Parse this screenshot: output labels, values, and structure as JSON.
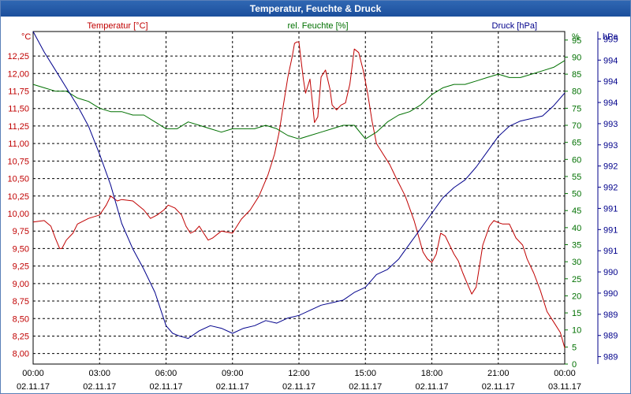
{
  "window": {
    "title": "Temperatur, Feuchte & Druck"
  },
  "colors": {
    "temperature": "#c00000",
    "humidity": "#007000",
    "pressure": "#00008b",
    "grid": "#000000",
    "titlebar": "#1f56a3"
  },
  "chart_data": {
    "type": "line",
    "title": "Temperatur, Feuchte & Druck",
    "grid": true,
    "x_tick_labels": [
      [
        "00:00",
        "02.11.17"
      ],
      [
        "03:00",
        "02.11.17"
      ],
      [
        "06:00",
        "02.11.17"
      ],
      [
        "09:00",
        "02.11.17"
      ],
      [
        "12:00",
        "02.11.17"
      ],
      [
        "15:00",
        "02.11.17"
      ],
      [
        "18:00",
        "02.11.17"
      ],
      [
        "21:00",
        "02.11.17"
      ],
      [
        "00:00",
        "03.11.17"
      ]
    ],
    "xlim_hours": [
      0,
      24
    ],
    "axes": {
      "temperature": {
        "unit": "°C",
        "ylim": [
          7.85,
          12.6
        ],
        "ticks": [
          "8,00",
          "8,25",
          "8,50",
          "8,75",
          "9,00",
          "9,25",
          "9,50",
          "9,75",
          "10,00",
          "10,25",
          "10,50",
          "10,75",
          "11,00",
          "11,25",
          "11,50",
          "11,75",
          "12,00",
          "12,25"
        ]
      },
      "humidity": {
        "unit": "%",
        "ylim": [
          0,
          97.5
        ],
        "ticks": [
          "0",
          "5",
          "10",
          "15",
          "20",
          "25",
          "30",
          "35",
          "40",
          "45",
          "50",
          "55",
          "60",
          "65",
          "70",
          "75",
          "80",
          "85",
          "90",
          "95"
        ]
      },
      "pressure": {
        "unit": "hPa",
        "ylim": [
          988.7,
          995.2
        ],
        "ticks": [
          "989",
          "989",
          "989",
          "990",
          "990",
          "991",
          "991",
          "991",
          "992",
          "992",
          "993",
          "993",
          "994",
          "994",
          "994",
          "995"
        ]
      }
    },
    "series": [
      {
        "name": "Temperatur [°C]",
        "axis": "temperature",
        "x": [
          0,
          0.5,
          0.8,
          1.0,
          1.2,
          1.3,
          1.5,
          1.8,
          2.0,
          2.5,
          3.0,
          3.3,
          3.5,
          3.8,
          4.0,
          4.5,
          5.0,
          5.3,
          5.6,
          5.9,
          6.1,
          6.4,
          6.7,
          6.9,
          7.1,
          7.3,
          7.5,
          7.7,
          7.9,
          8.1,
          8.5,
          9.0,
          9.4,
          9.8,
          10.2,
          10.6,
          10.9,
          11.1,
          11.3,
          11.5,
          11.7,
          11.8,
          11.9,
          12.0,
          12.1,
          12.2,
          12.3,
          12.5,
          12.7,
          12.85,
          13.0,
          13.2,
          13.4,
          13.5,
          13.7,
          13.9,
          14.1,
          14.3,
          14.5,
          14.7,
          14.9,
          15.1,
          15.3,
          15.5,
          15.8,
          16.1,
          16.4,
          16.8,
          17.2,
          17.6,
          17.8,
          18.0,
          18.2,
          18.4,
          18.6,
          18.8,
          19.0,
          19.2,
          19.4,
          19.6,
          19.8,
          20.0,
          20.3,
          20.6,
          20.8,
          21.0,
          21.2,
          21.5,
          21.8,
          22.1,
          22.3,
          22.6,
          22.9,
          23.2,
          23.5,
          23.8,
          24.0
        ],
        "y": [
          9.88,
          9.9,
          9.82,
          9.65,
          9.5,
          9.5,
          9.62,
          9.72,
          9.85,
          9.93,
          9.98,
          10.12,
          10.25,
          10.18,
          10.2,
          10.18,
          10.05,
          9.93,
          9.98,
          10.05,
          10.12,
          10.08,
          9.98,
          9.82,
          9.72,
          9.75,
          9.82,
          9.72,
          9.62,
          9.65,
          9.75,
          9.72,
          9.92,
          10.05,
          10.25,
          10.55,
          10.85,
          11.15,
          11.55,
          11.95,
          12.25,
          12.43,
          12.45,
          12.45,
          12.18,
          11.92,
          11.72,
          11.92,
          11.3,
          11.38,
          11.95,
          12.05,
          11.78,
          11.55,
          11.48,
          11.55,
          11.58,
          11.85,
          12.35,
          12.3,
          12.05,
          11.72,
          11.32,
          11.0,
          10.85,
          10.7,
          10.5,
          10.25,
          9.9,
          9.45,
          9.35,
          9.3,
          9.42,
          9.72,
          9.68,
          9.55,
          9.42,
          9.32,
          9.15,
          9.0,
          8.85,
          8.95,
          9.55,
          9.82,
          9.9,
          9.87,
          9.85,
          9.85,
          9.65,
          9.55,
          9.35,
          9.15,
          8.9,
          8.6,
          8.45,
          8.3,
          8.08
        ]
      },
      {
        "name": "rel. Feuchte [%]",
        "axis": "humidity",
        "x": [
          0,
          0.5,
          1.0,
          1.5,
          2.0,
          2.5,
          3.0,
          3.5,
          4.0,
          4.5,
          5.0,
          5.5,
          6.0,
          6.5,
          7.0,
          7.5,
          8.0,
          8.5,
          9.0,
          9.5,
          10.0,
          10.5,
          11.0,
          11.5,
          12.0,
          12.5,
          13.0,
          13.5,
          14.0,
          14.5,
          15.0,
          15.5,
          16.0,
          16.5,
          17.0,
          17.5,
          18.0,
          18.5,
          19.0,
          19.5,
          20.0,
          20.5,
          21.0,
          21.5,
          22.0,
          22.5,
          23.0,
          23.5,
          24.0
        ],
        "y": [
          82,
          81,
          80,
          80,
          78,
          77,
          75,
          74,
          74,
          73,
          73,
          71,
          69,
          69,
          71,
          70,
          69,
          68,
          69,
          69,
          69,
          70,
          69,
          67,
          66,
          67,
          68,
          69,
          70,
          70,
          66,
          68,
          71,
          73,
          74,
          76,
          79,
          81,
          82,
          82,
          83,
          84,
          85,
          84,
          84,
          85,
          86,
          87,
          89
        ]
      },
      {
        "name": "Druck [hPa]",
        "axis": "pressure",
        "x": [
          0,
          0.5,
          1.0,
          1.5,
          2.0,
          2.5,
          3.0,
          3.5,
          4.0,
          4.5,
          5.0,
          5.5,
          6.0,
          6.3,
          6.6,
          7.0,
          7.5,
          8.0,
          8.5,
          9.0,
          9.5,
          10.0,
          10.5,
          11.0,
          11.5,
          12.0,
          12.5,
          13.0,
          13.5,
          14.0,
          14.5,
          15.0,
          15.5,
          16.0,
          16.5,
          17.0,
          17.5,
          18.0,
          18.5,
          19.0,
          19.5,
          20.0,
          20.5,
          21.0,
          21.5,
          22.0,
          22.5,
          23.0,
          23.5,
          24.0
        ],
        "y": [
          995.2,
          994.8,
          994.45,
          994.1,
          993.75,
          993.35,
          992.8,
          992.2,
          991.45,
          990.95,
          990.55,
          990.1,
          989.45,
          989.3,
          989.25,
          989.2,
          989.35,
          989.45,
          989.4,
          989.3,
          989.4,
          989.45,
          989.55,
          989.5,
          989.6,
          989.65,
          989.75,
          989.85,
          989.9,
          989.95,
          990.1,
          990.2,
          990.45,
          990.55,
          990.75,
          991.05,
          991.35,
          991.65,
          991.95,
          992.15,
          992.3,
          992.55,
          992.85,
          993.15,
          993.35,
          993.45,
          993.5,
          993.55,
          993.75,
          994.0
        ]
      }
    ]
  }
}
